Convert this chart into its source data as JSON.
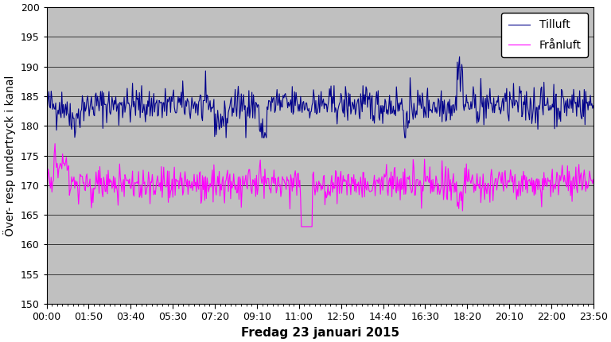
{
  "n_points": 720,
  "tilluft_base": 183.5,
  "tilluft_noise_std": 1.5,
  "franluft_base": 170.2,
  "franluft_noise_std": 1.4,
  "ylim": [
    150,
    200
  ],
  "yticks": [
    150,
    155,
    160,
    165,
    170,
    175,
    180,
    185,
    190,
    195,
    200
  ],
  "time_labels": [
    "00:00",
    "01:50",
    "03:40",
    "05:30",
    "07:20",
    "09:10",
    "11:00",
    "12:50",
    "14:40",
    "16:30",
    "18:20",
    "20:10",
    "22:00",
    "23:50"
  ],
  "tilluft_color": "#00008B",
  "franluft_color": "#FF00FF",
  "background_color": "#C0C0C0",
  "plot_bg_color": "#C0C0C0",
  "outer_bg_color": "#FFFFFF",
  "ylabel": "Över- resp undertryck i kanal",
  "xlabel": "Fredag 23 januari 2015",
  "legend_tilluft": "Tilluft",
  "legend_franluft": "Frånluft",
  "label_fontsize": 10,
  "tick_fontsize": 9,
  "legend_fontsize": 10,
  "xlabel_fontsize": 11,
  "line_width": 0.8
}
